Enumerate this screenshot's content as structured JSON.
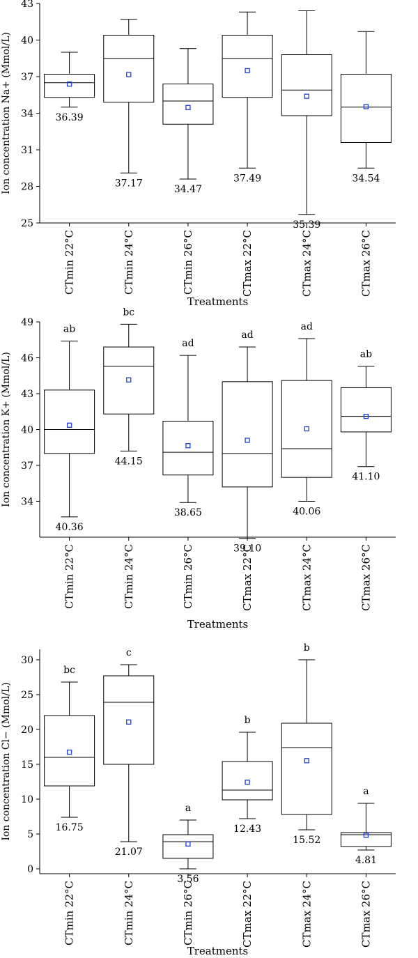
{
  "figure": {
    "x_title": "Treatments",
    "categories": [
      "CTmin 22°C",
      "CTmin 24°C",
      "CTmin 26°C",
      "CTmax 22°C",
      "CTmax 24°C",
      "CTmax 26°C"
    ],
    "mean_marker_color": "#1f3fcc",
    "line_color": "#000000"
  },
  "chart_data": [
    {
      "type": "box",
      "ylabel": "Ion concentration Na+ (Mmol/L)",
      "xlabel": "Treatments",
      "ylim": [
        25,
        43
      ],
      "yticks": [
        25,
        28,
        31,
        34,
        37,
        40,
        43
      ],
      "boxes": [
        {
          "category": "CTmin 22°C",
          "min": 34.5,
          "q1": 35.3,
          "median": 36.5,
          "q3": 37.2,
          "max": 39.0,
          "mean": 36.39,
          "mean_label": "36.39"
        },
        {
          "category": "CTmin 24°C",
          "min": 29.1,
          "q1": 34.9,
          "median": 38.5,
          "q3": 40.4,
          "max": 41.7,
          "mean": 37.17,
          "mean_label": "37.17"
        },
        {
          "category": "CTmin 26°C",
          "min": 28.6,
          "q1": 33.1,
          "median": 35.0,
          "q3": 36.4,
          "max": 39.3,
          "mean": 34.47,
          "mean_label": "34.47"
        },
        {
          "category": "CTmax 22°C",
          "min": 29.5,
          "q1": 35.3,
          "median": 38.5,
          "q3": 40.4,
          "max": 42.3,
          "mean": 37.49,
          "mean_label": "37.49"
        },
        {
          "category": "CTmax 24°C",
          "min": 25.7,
          "q1": 33.8,
          "median": 35.9,
          "q3": 38.8,
          "max": 42.4,
          "mean": 35.39,
          "mean_label": "35.39"
        },
        {
          "category": "CTmax 26°C",
          "min": 29.5,
          "q1": 31.6,
          "median": 34.5,
          "q3": 37.2,
          "max": 40.7,
          "mean": 34.54,
          "mean_label": "34.54"
        }
      ]
    },
    {
      "type": "box",
      "ylabel": "Ion concentration K+ (Mmol/L)",
      "xlabel": "Treatments",
      "ylim": [
        31,
        49
      ],
      "yticks": [
        34,
        37,
        40,
        43,
        46,
        49
      ],
      "boxes": [
        {
          "category": "CTmin 22°C",
          "min": 32.7,
          "q1": 38.0,
          "median": 40.0,
          "q3": 43.3,
          "max": 47.4,
          "mean": 40.36,
          "mean_label": "40.36",
          "letter": "ab"
        },
        {
          "category": "CTmin 24°C",
          "min": 38.2,
          "q1": 41.3,
          "median": 45.3,
          "q3": 46.9,
          "max": 48.8,
          "mean": 44.15,
          "mean_label": "44.15",
          "letter": "bc"
        },
        {
          "category": "CTmin 26°C",
          "min": 33.9,
          "q1": 36.2,
          "median": 38.1,
          "q3": 40.7,
          "max": 46.2,
          "mean": 38.65,
          "mean_label": "38.65",
          "letter": "ad"
        },
        {
          "category": "CTmax 22°C",
          "min": 30.9,
          "q1": 35.2,
          "median": 38.0,
          "q3": 44.0,
          "max": 46.9,
          "mean": 39.1,
          "mean_label": "39.10",
          "letter": "ad"
        },
        {
          "category": "CTmax 24°C",
          "min": 34.0,
          "q1": 36.0,
          "median": 38.4,
          "q3": 44.1,
          "max": 47.6,
          "mean": 40.06,
          "mean_label": "40.06",
          "letter": "ad"
        },
        {
          "category": "CTmax 26°C",
          "min": 36.9,
          "q1": 39.8,
          "median": 41.1,
          "q3": 43.5,
          "max": 45.3,
          "mean": 41.1,
          "mean_label": "41.10",
          "letter": "ab"
        }
      ]
    },
    {
      "type": "box",
      "ylabel": "Ion concentration Cl− (Mmol/L)",
      "xlabel": "Treatments",
      "ylim": [
        -0.7,
        31.5
      ],
      "yticks": [
        0,
        5,
        10,
        15,
        20,
        25,
        30
      ],
      "boxes": [
        {
          "category": "CTmin 22°C",
          "min": 7.4,
          "q1": 11.9,
          "median": 16.0,
          "q3": 22.0,
          "max": 26.8,
          "mean": 16.75,
          "mean_label": "16.75",
          "letter": "bc"
        },
        {
          "category": "CTmin 24°C",
          "min": 3.9,
          "q1": 15.0,
          "median": 23.9,
          "q3": 27.7,
          "max": 29.3,
          "mean": 21.07,
          "mean_label": "21.07",
          "letter": "c"
        },
        {
          "category": "CTmin 26°C",
          "min": 0.0,
          "q1": 1.5,
          "median": 3.9,
          "q3": 4.9,
          "max": 7.0,
          "mean": 3.56,
          "mean_label": "3.56",
          "letter": "a"
        },
        {
          "category": "CTmax 22°C",
          "min": 7.2,
          "q1": 9.9,
          "median": 11.3,
          "q3": 15.4,
          "max": 19.6,
          "mean": 12.43,
          "mean_label": "12.43",
          "letter": "b"
        },
        {
          "category": "CTmax 24°C",
          "min": 5.6,
          "q1": 7.8,
          "median": 17.4,
          "q3": 20.9,
          "max": 30.0,
          "mean": 15.52,
          "mean_label": "15.52",
          "letter": "b"
        },
        {
          "category": "CTmax 26°C",
          "min": 2.7,
          "q1": 3.2,
          "median": 4.9,
          "q3": 5.2,
          "max": 9.4,
          "mean": 4.81,
          "mean_label": "4.81",
          "letter": "a"
        }
      ]
    }
  ]
}
